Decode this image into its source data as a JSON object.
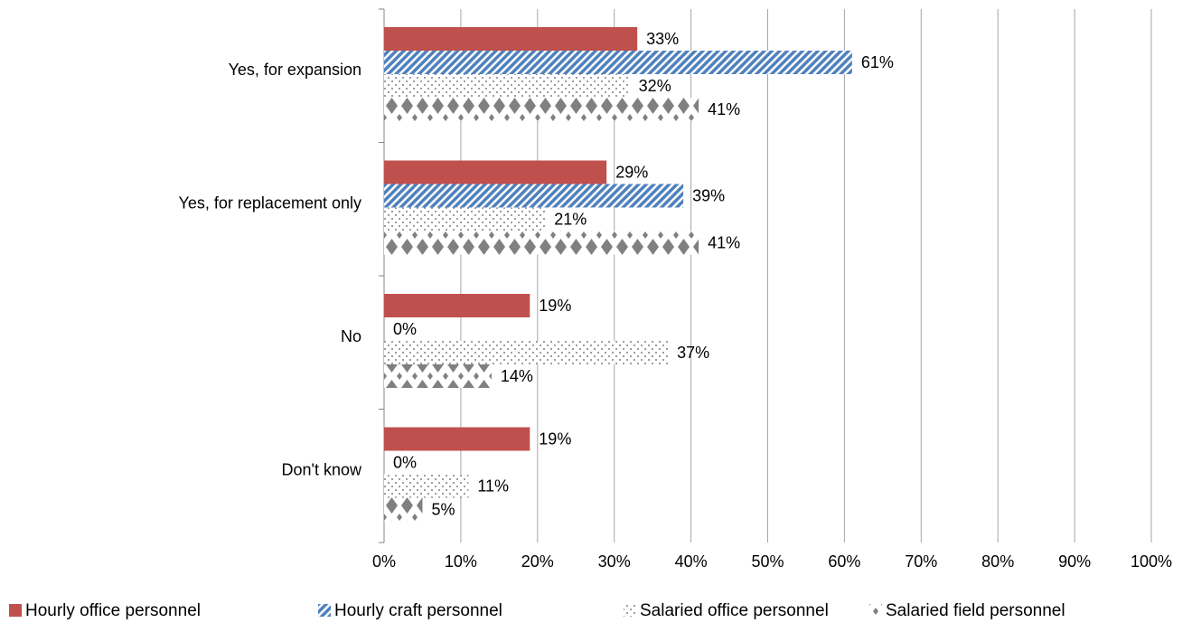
{
  "chart_data": {
    "type": "bar",
    "orientation": "horizontal",
    "categories": [
      "Yes, for expansion",
      "Yes, for replacement only",
      "No",
      "Don't know"
    ],
    "series": [
      {
        "name": "Hourly office personnel",
        "color": "#c0504d",
        "pattern": "solid",
        "values": [
          33,
          29,
          19,
          19
        ],
        "value_labels": [
          "33%",
          "29%",
          "19%",
          "19%"
        ]
      },
      {
        "name": "Hourly craft personnel",
        "color": "#4f81bd",
        "pattern": "diagonal",
        "values": [
          61,
          39,
          0,
          0
        ],
        "value_labels": [
          "61%",
          "39%",
          "0%",
          "0%"
        ]
      },
      {
        "name": "Salaried office personnel",
        "color": "#808080",
        "pattern": "dots",
        "values": [
          32,
          21,
          37,
          11
        ],
        "value_labels": [
          "32%",
          "21%",
          "37%",
          "11%"
        ]
      },
      {
        "name": "Salaried field personnel",
        "color": "#808080",
        "pattern": "diamonds",
        "values": [
          41,
          41,
          14,
          5
        ],
        "value_labels": [
          "41%",
          "41%",
          "14%",
          "5%"
        ]
      }
    ],
    "xlim": [
      0,
      100
    ],
    "xticks": [
      {
        "value": 0,
        "label": "0%"
      },
      {
        "value": 10,
        "label": "10%"
      },
      {
        "value": 20,
        "label": "20%"
      },
      {
        "value": 30,
        "label": "30%"
      },
      {
        "value": 40,
        "label": "40%"
      },
      {
        "value": 50,
        "label": "50%"
      },
      {
        "value": 60,
        "label": "60%"
      },
      {
        "value": 70,
        "label": "70%"
      },
      {
        "value": 80,
        "label": "80%"
      },
      {
        "value": 90,
        "label": "90%"
      },
      {
        "value": 100,
        "label": "100%"
      }
    ],
    "grid": true,
    "legend": "bottom"
  }
}
